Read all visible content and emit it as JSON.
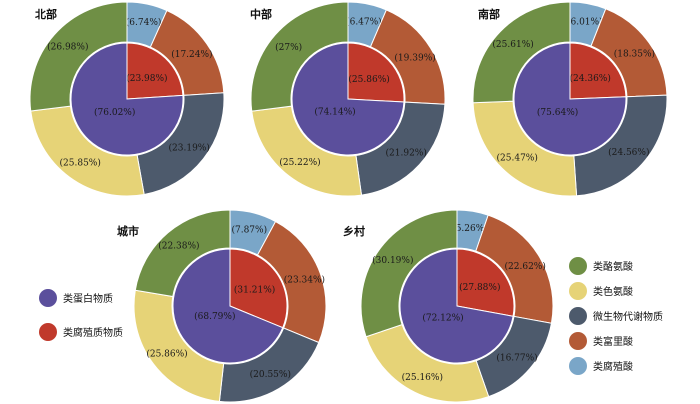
{
  "chart_data": {
    "type": "pie",
    "style": "nested donut: inner pie + outer ring",
    "colors": {
      "类蛋白物质": "#5b4f9c",
      "类腐殖质物质": "#c0392b",
      "类酪氨酸": "#6f8f45",
      "类色氨酸": "#e6d377",
      "微生物代谢物质": "#4d5a6c",
      "类富里酸": "#b35a36",
      "类腐殖酸": "#7aa6c8"
    },
    "inner_categories": [
      "类蛋白物质",
      "类腐殖质物质"
    ],
    "outer_categories": [
      "类腐殖酸",
      "类富里酸",
      "微生物代谢物质",
      "类色氨酸",
      "类酪氨酸"
    ],
    "panels": [
      {
        "title": "北部",
        "inner": {
          "类腐殖质物质": "23.98%",
          "类蛋白物质": "76.02%"
        },
        "outer": {
          "类腐殖酸": "6.74%",
          "类富里酸": "17.24%",
          "微生物代谢物质": "23.19%",
          "类色氨酸": "25.85%",
          "类酪氨酸": "26.98%"
        }
      },
      {
        "title": "中部",
        "inner": {
          "类腐殖质物质": "25.86%",
          "类蛋白物质": "74.14%"
        },
        "outer": {
          "类腐殖酸": "6.47%",
          "类富里酸": "19.39%",
          "微生物代谢物质": "21.92%",
          "类色氨酸": "25.22%",
          "类酪氨酸": "27%"
        }
      },
      {
        "title": "南部",
        "inner": {
          "类腐殖质物质": "24.36%",
          "类蛋白物质": "75.64%"
        },
        "outer": {
          "类腐殖酸": "6.01%",
          "类富里酸": "18.35%",
          "微生物代谢物质": "24.56%",
          "类色氨酸": "25.47%",
          "类酪氨酸": "25.61%"
        }
      },
      {
        "title": "城市",
        "inner": {
          "类腐殖质物质": "31.21%",
          "类蛋白物质": "68.79%"
        },
        "outer": {
          "类腐殖酸": "7.87%",
          "类富里酸": "23.34%",
          "微生物代谢物质": "20.55%",
          "类色氨酸": "25.86%",
          "类酪氨酸": "22.38%"
        }
      },
      {
        "title": "乡村",
        "inner": {
          "类腐殖质物质": "27.88%",
          "类蛋白物质": "72.12%"
        },
        "outer": {
          "类腐殖酸": "5.26%",
          "类富里酸": "22.62%",
          "微生物代谢物质": "16.77%",
          "类色氨酸": "25.16%",
          "类酪氨酸": "30.19%"
        }
      }
    ],
    "legend_left": [
      "类蛋白物质",
      "类腐殖质物质"
    ],
    "legend_right": [
      "类酪氨酸",
      "类色氨酸",
      "微生物代谢物质",
      "类富里酸",
      "类腐殖酸"
    ]
  }
}
